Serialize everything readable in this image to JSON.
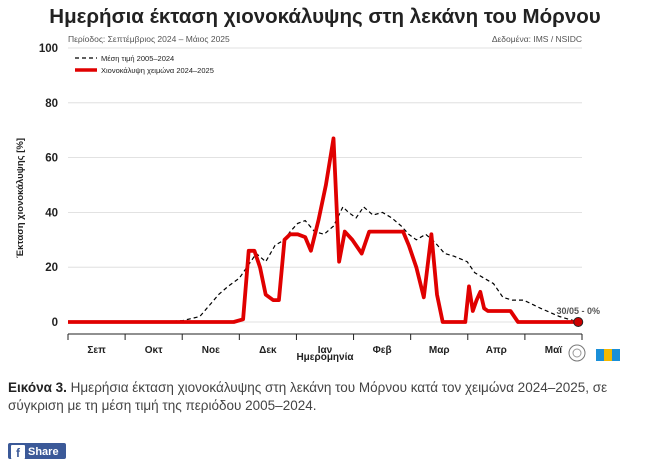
{
  "caption": {
    "label": "Εικόνα 3.",
    "text": " Ημερήσια έκταση χιονοκάλυψης στη λεκάνη του Μόρνου κατά τον χειμώνα 2024–2025, σε σύγκριση με τη μέση τιμή της περιόδου 2005–2024."
  },
  "share_button": {
    "label": "Share",
    "icon": "facebook-icon"
  },
  "chart_data": {
    "type": "line",
    "title": "Ημερήσια έκταση χιονοκάλυψης στη λεκάνη του Μόρνου",
    "subtitle": "Περίοδος: Σεπτέμβριος 2024 – Μάιος 2025",
    "source": "Δεδομένα: IMS / NSIDC",
    "xlabel": "Ημερομηνία",
    "ylabel": "Έκταση χιονοκάλυψης [%]",
    "ylim": [
      0,
      100
    ],
    "yticks": [
      0,
      20,
      40,
      60,
      80,
      100
    ],
    "categories": [
      "Σεπ",
      "Οκτ",
      "Νοε",
      "Δεκ",
      "Ιαν",
      "Φεβ",
      "Μαρ",
      "Απρ",
      "Μαϊ"
    ],
    "grid": true,
    "legend_position": "top-left",
    "end_annotation": "30/05 - 0%",
    "colors": {
      "mean": "#000000",
      "season": "#e00000",
      "marker": "#cc0000",
      "annotation": "#555555"
    },
    "series": [
      {
        "name": "Μέση τιμή 2005–2024",
        "style": "dashed",
        "x": [
          "2024-09-01",
          "2024-10-01",
          "2024-10-20",
          "2024-11-01",
          "2024-11-10",
          "2024-11-15",
          "2024-11-20",
          "2024-11-25",
          "2024-12-01",
          "2024-12-05",
          "2024-12-10",
          "2024-12-15",
          "2024-12-20",
          "2024-12-25",
          "2024-12-28",
          "2025-01-01",
          "2025-01-05",
          "2025-01-10",
          "2025-01-15",
          "2025-01-20",
          "2025-01-25",
          "2025-01-28",
          "2025-02-01",
          "2025-02-05",
          "2025-02-10",
          "2025-02-15",
          "2025-02-20",
          "2025-02-25",
          "2025-03-01",
          "2025-03-05",
          "2025-03-10",
          "2025-03-15",
          "2025-03-20",
          "2025-03-25",
          "2025-04-01",
          "2025-04-05",
          "2025-04-10",
          "2025-04-15",
          "2025-04-20",
          "2025-04-25",
          "2025-05-01",
          "2025-05-10",
          "2025-05-20",
          "2025-05-30"
        ],
        "values": [
          0,
          0,
          0,
          0.5,
          2,
          6,
          10,
          13,
          16,
          20,
          25,
          22,
          28,
          30,
          33,
          36,
          37,
          33,
          32,
          35,
          42,
          40,
          38,
          42,
          39,
          40,
          38,
          35,
          32,
          30,
          32,
          29,
          25,
          24,
          22,
          18,
          16,
          14,
          9,
          8,
          8,
          5,
          2,
          0
        ]
      },
      {
        "name": "Χιονοκάλυψη χειμώνα 2024–2025",
        "style": "solid",
        "x": [
          "2024-09-01",
          "2024-11-28",
          "2024-12-03",
          "2024-12-06",
          "2024-12-09",
          "2024-12-12",
          "2024-12-15",
          "2024-12-19",
          "2024-12-22",
          "2024-12-25",
          "2024-12-28",
          "2025-01-01",
          "2025-01-05",
          "2025-01-08",
          "2025-01-12",
          "2025-01-16",
          "2025-01-20",
          "2025-01-23",
          "2025-01-26",
          "2025-01-30",
          "2025-02-04",
          "2025-02-08",
          "2025-02-11",
          "2025-02-15",
          "2025-02-20",
          "2025-02-26",
          "2025-03-01",
          "2025-03-05",
          "2025-03-09",
          "2025-03-13",
          "2025-03-16",
          "2025-03-19",
          "2025-03-24",
          "2025-03-31",
          "2025-04-02",
          "2025-04-04",
          "2025-04-06",
          "2025-04-08",
          "2025-04-10",
          "2025-04-12",
          "2025-04-14",
          "2025-04-17",
          "2025-04-24",
          "2025-04-28",
          "2025-05-10",
          "2025-05-20",
          "2025-05-30"
        ],
        "values": [
          0,
          0,
          1,
          26,
          26,
          20,
          10,
          8,
          8,
          30,
          32,
          32,
          31,
          26,
          37,
          50,
          67,
          22,
          33,
          30,
          25,
          33,
          33,
          33,
          33,
          33,
          28,
          20,
          9,
          32,
          10,
          0,
          0,
          0,
          13,
          4,
          8,
          11,
          5,
          4,
          4,
          4,
          4,
          0,
          0,
          0,
          0
        ]
      }
    ]
  }
}
